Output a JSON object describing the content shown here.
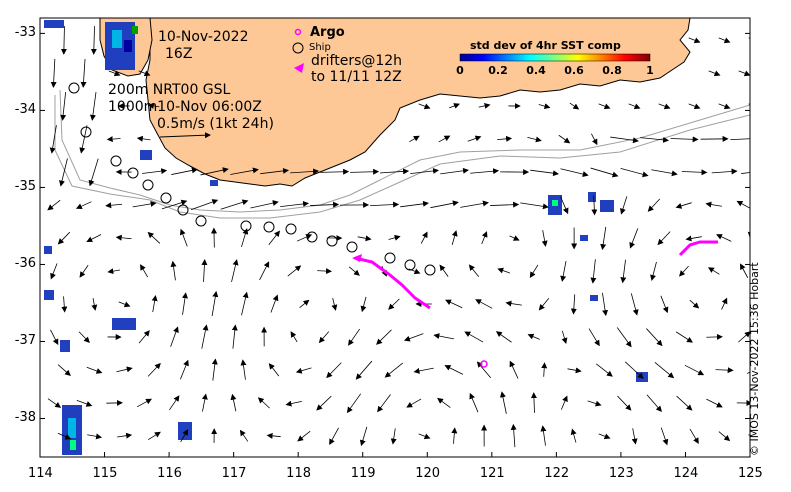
{
  "map": {
    "date_line": "10-Nov-2022",
    "time_line": "16Z",
    "depth_line": "200m  NRT00 GSL",
    "depth2_line": "1000m10-Nov 06:00Z",
    "scale_label": "0.5m/s (1kt 24h)",
    "credit": "© IMOS 13-Nov-2022 15:36 Hobart"
  },
  "legend": {
    "argo": "Argo",
    "ship": "Ship",
    "drifters_line1": "drifters@12h",
    "drifters_line2": "to 11/11 12Z",
    "argo_color": "#ff00ff",
    "drifter_color": "#ff00ff"
  },
  "colorbar": {
    "title": "std dev of 4hr SST comp",
    "ticks": [
      "0",
      "0.2",
      "0.4",
      "0.6",
      "0.8",
      "1"
    ]
  },
  "axes": {
    "x_ticks": [
      "114",
      "115",
      "116",
      "117",
      "118",
      "119",
      "120",
      "121",
      "122",
      "123",
      "124",
      "125"
    ],
    "y_ticks": [
      "-33",
      "-34",
      "-35",
      "-36",
      "-37",
      "-38"
    ]
  },
  "colors": {
    "land": "#fdc896",
    "isobath": "#a0a0a0"
  }
}
